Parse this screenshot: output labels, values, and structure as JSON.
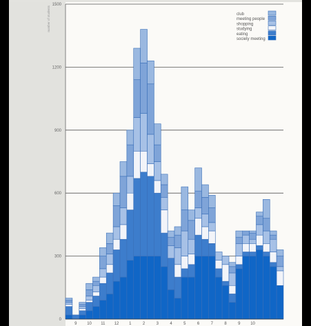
{
  "chart_data": {
    "type": "bar",
    "stacked": true,
    "ylabel": "number of students",
    "ylim": [
      0,
      1500
    ],
    "yticks": [
      0,
      300,
      600,
      900,
      1200,
      1500
    ],
    "grid": true,
    "legend_position": "top-right",
    "xticks": [
      "9",
      "10",
      "11",
      "12",
      "1",
      "2",
      "3",
      "4",
      "5",
      "6",
      "7",
      "8",
      "9",
      "10"
    ],
    "colors": {
      "club": "#9ab8e0",
      "meeting people": "#7fa4d8",
      "shopping": "#a7c1e6",
      "studying": "#f2f4f9",
      "eating": "#3d7dcc",
      "society meeting": "#1066c6"
    },
    "series": [
      {
        "name": "society meeting",
        "values": [
          20,
          0,
          20,
          40,
          60,
          90,
          120,
          180,
          200,
          280,
          300,
          300,
          300,
          300,
          250,
          140,
          100,
          200,
          200,
          300,
          300,
          300,
          200,
          160,
          80,
          240,
          300,
          300,
          330,
          300,
          250,
          160
        ]
      },
      {
        "name": "eating",
        "values": [
          40,
          20,
          20,
          40,
          50,
          80,
          100,
          150,
          180,
          240,
          370,
          400,
          380,
          300,
          160,
          150,
          100,
          40,
          60,
          100,
          80,
          60,
          40,
          20,
          40,
          20,
          20,
          20,
          20,
          20,
          20,
          0
        ]
      },
      {
        "name": "studying",
        "values": [
          10,
          0,
          10,
          10,
          20,
          30,
          40,
          50,
          70,
          80,
          130,
          100,
          60,
          60,
          110,
          0,
          60,
          60,
          50,
          80,
          60,
          60,
          40,
          80,
          40,
          40,
          40,
          40,
          50,
          40,
          50,
          70
        ]
      },
      {
        "name": "shopping",
        "values": [
          10,
          0,
          10,
          20,
          30,
          40,
          50,
          60,
          80,
          80,
          160,
          180,
          140,
          90,
          60,
          60,
          80,
          120,
          70,
          50,
          60,
          40,
          40,
          40,
          60,
          60,
          40,
          20,
          50,
          60,
          60,
          20
        ]
      },
      {
        "name": "meeting people",
        "values": [
          10,
          0,
          10,
          30,
          20,
          60,
          50,
          100,
          150,
          150,
          180,
          240,
          240,
          80,
          60,
          40,
          60,
          100,
          90,
          80,
          80,
          70,
          0,
          0,
          30,
          30,
          20,
          30,
          40,
          60,
          20,
          50
        ]
      },
      {
        "name": "club",
        "values": [
          10,
          0,
          10,
          30,
          20,
          40,
          50,
          60,
          70,
          70,
          150,
          160,
          110,
          100,
          50,
          30,
          40,
          110,
          50,
          110,
          60,
          60,
          0,
          0,
          20,
          30,
          0,
          10,
          20,
          90,
          20,
          30
        ]
      }
    ]
  }
}
